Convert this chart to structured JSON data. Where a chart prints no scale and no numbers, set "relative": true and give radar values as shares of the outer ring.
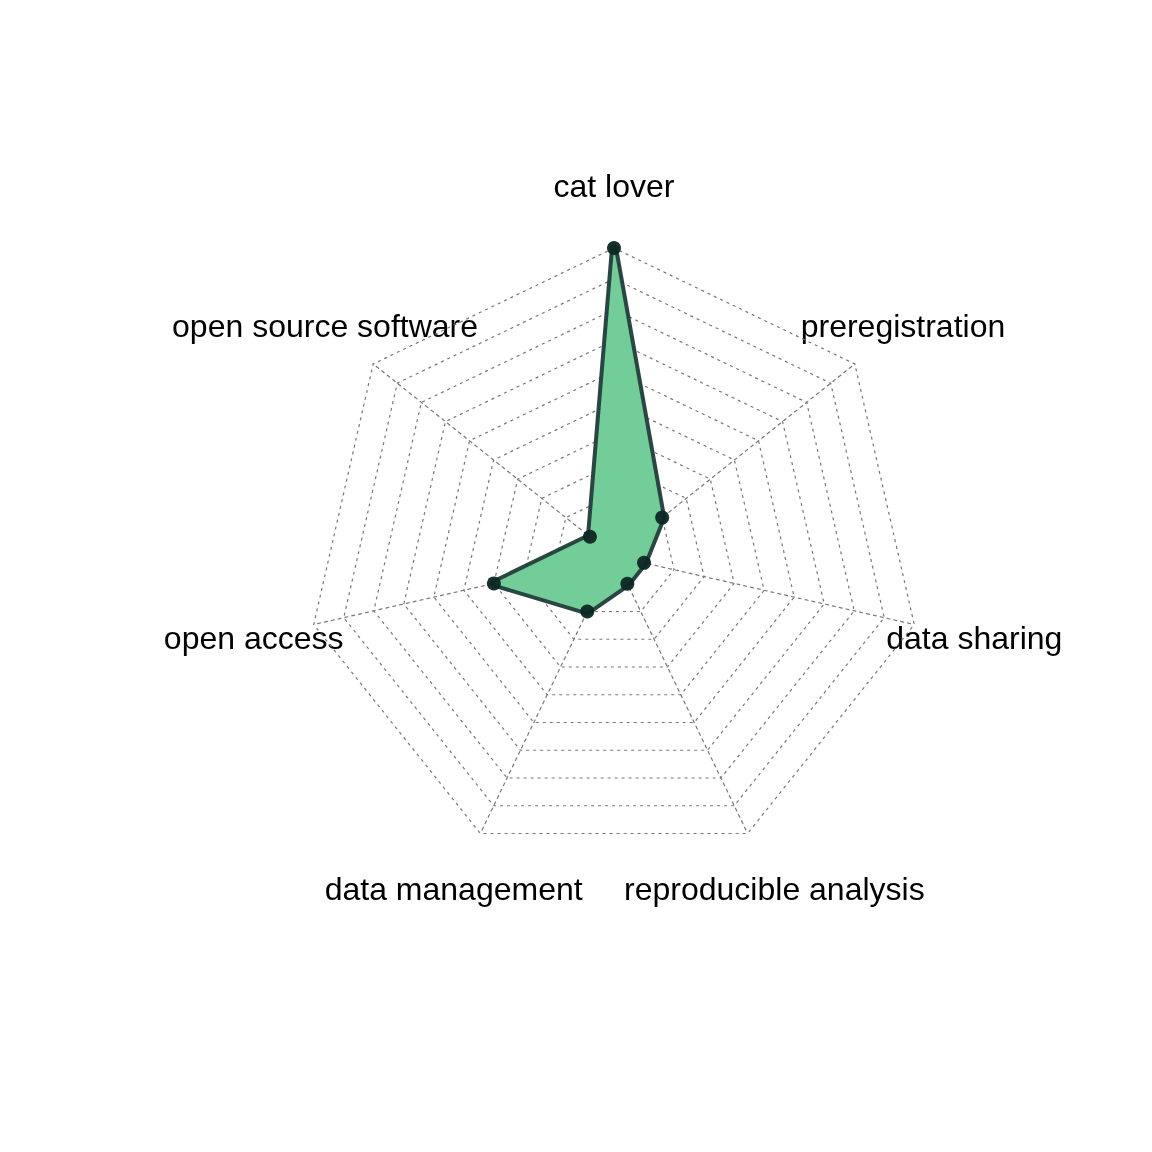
{
  "chart_data": {
    "type": "radar",
    "relative": true,
    "categories": [
      "cat lover",
      "preregistration",
      "data sharing",
      "reproducible analysis",
      "data management",
      "open access",
      "open source software"
    ],
    "series": [
      {
        "color": "#73cd99",
        "values": [
          1,
          0.2,
          0.1,
          0.1,
          0.2,
          0.4,
          0.1
        ]
      }
    ],
    "grid": true,
    "marker": "circle",
    "line_style": "solid"
  }
}
